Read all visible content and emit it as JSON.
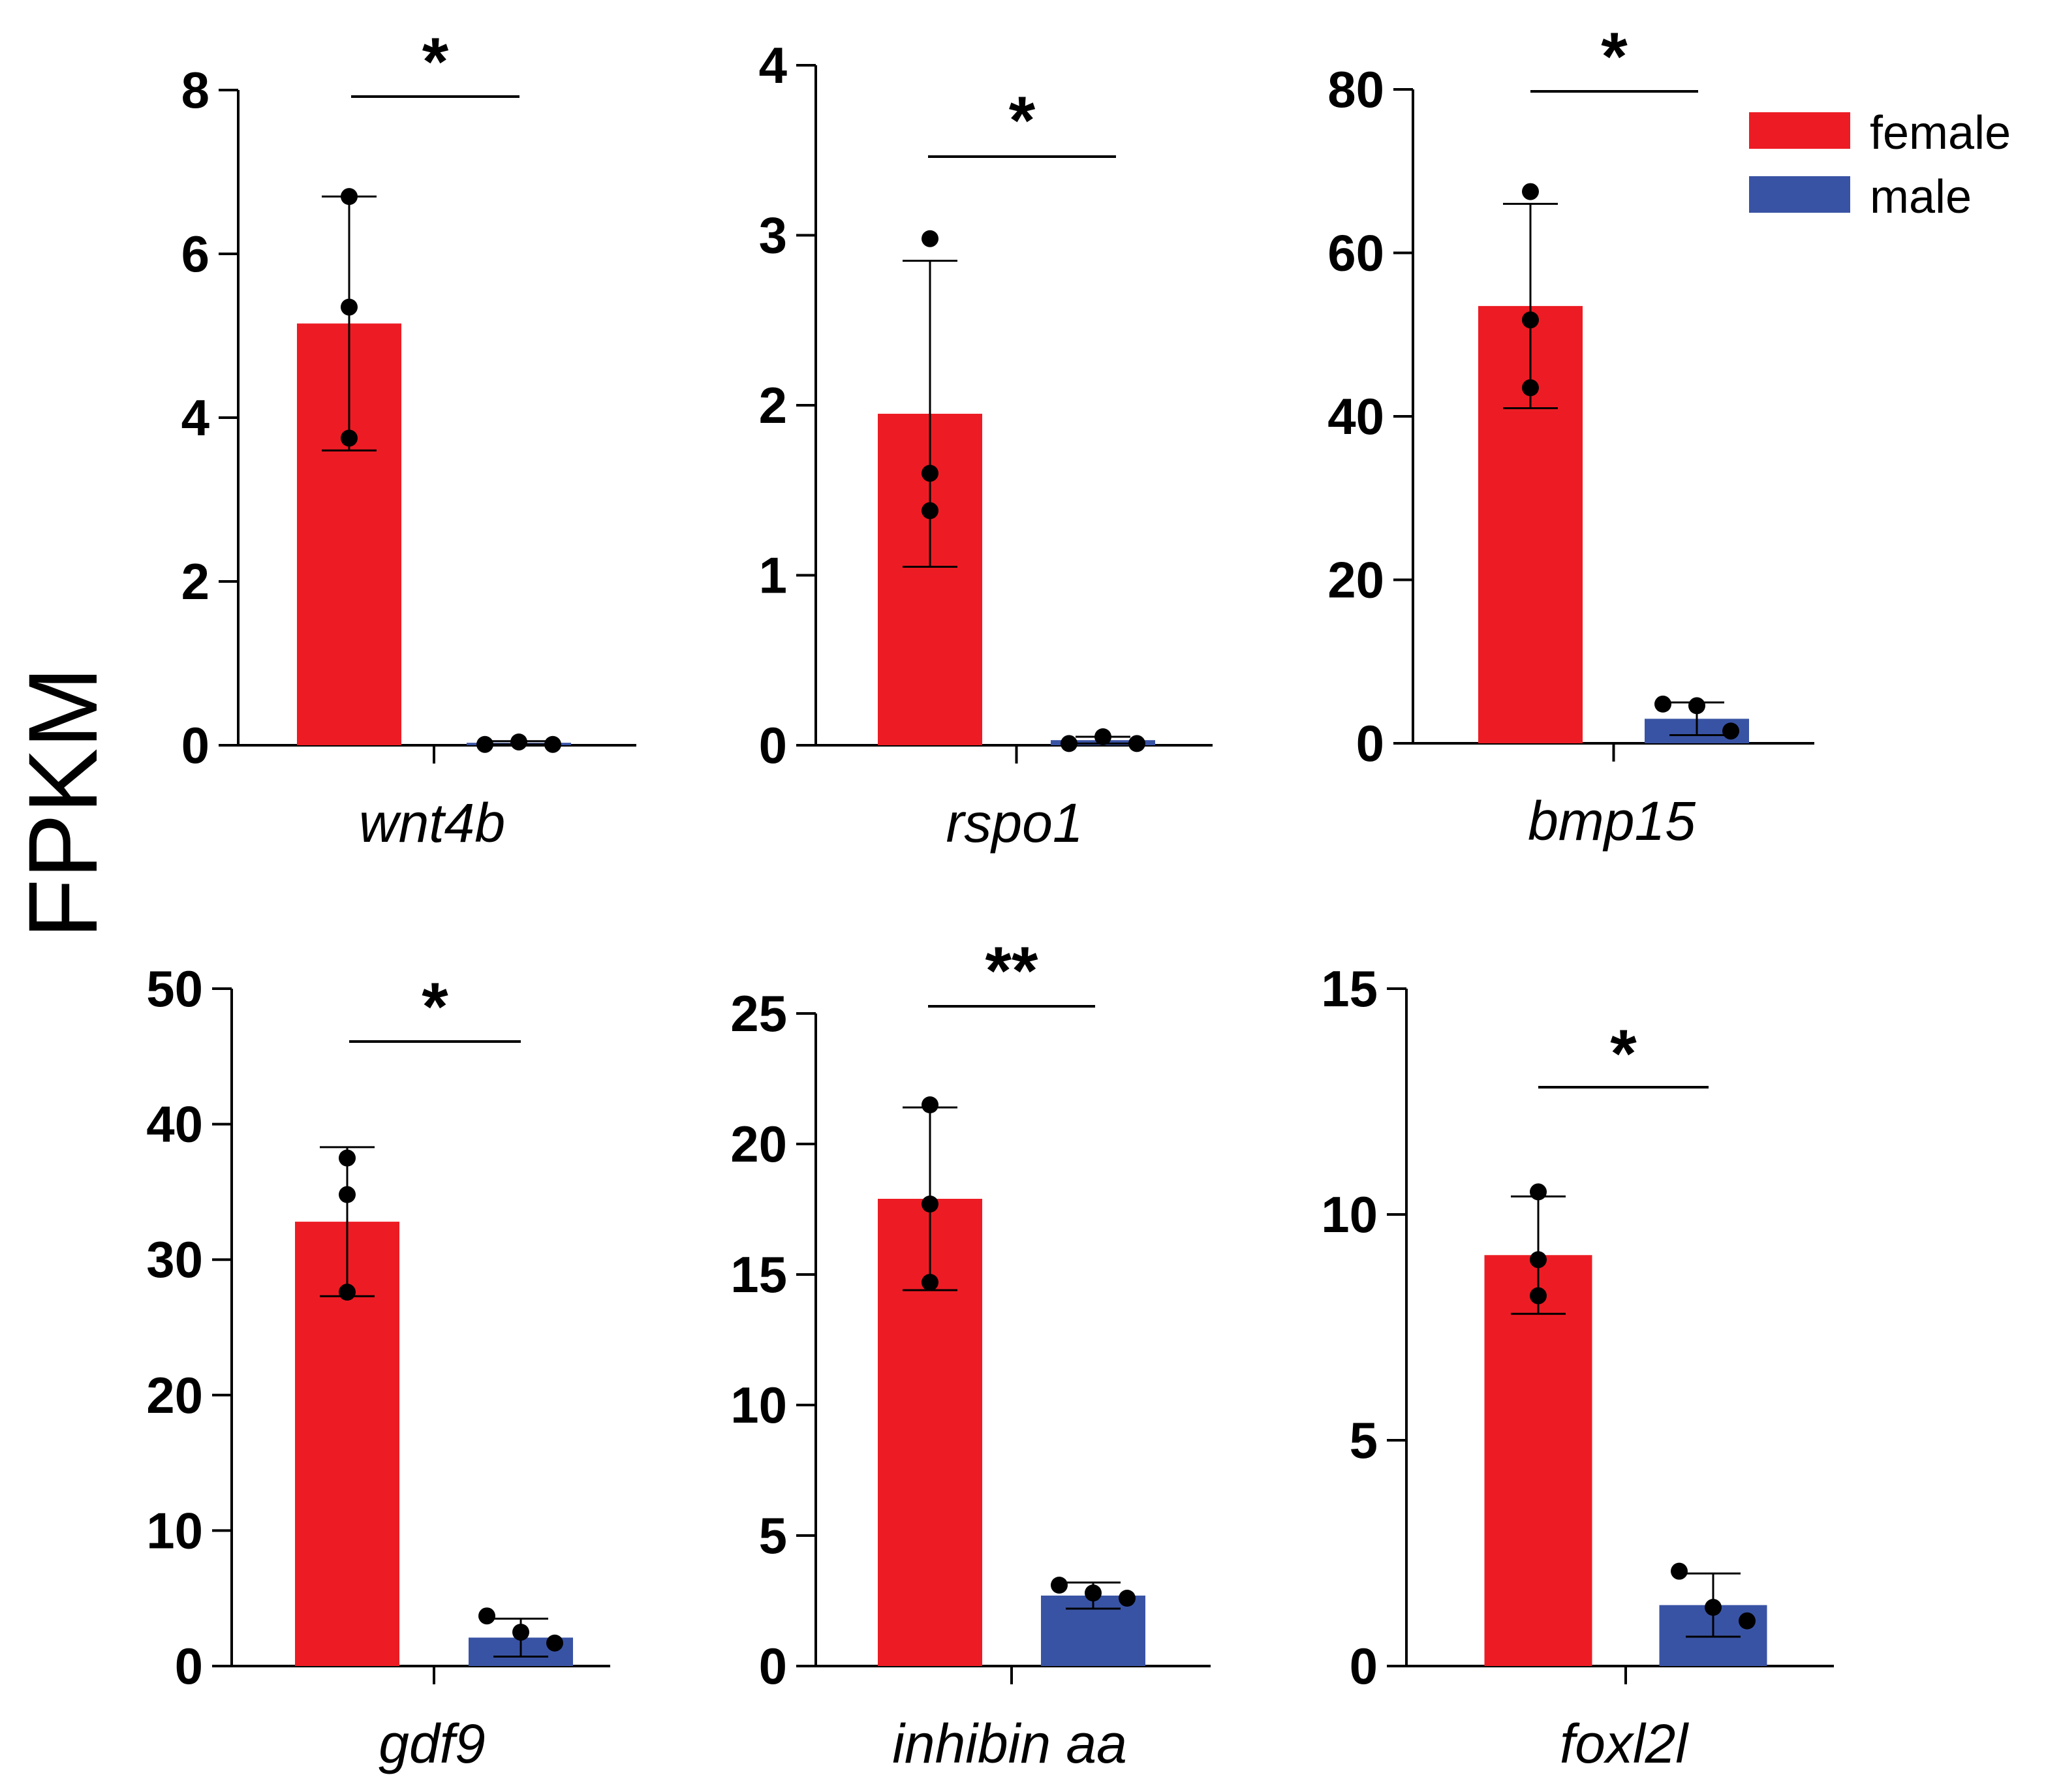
{
  "chart_data": {
    "type": "bar",
    "figure": {
      "ylabel": "FPKM",
      "legend": {
        "position": "top-right",
        "entries": [
          {
            "name": "female",
            "color": "#ed1c24"
          },
          {
            "name": "male",
            "color": "#3953a4"
          }
        ]
      }
    },
    "panels": [
      {
        "gene": "wnt4b",
        "significance": "*",
        "ylim": [
          0,
          8
        ],
        "ticks": [
          "0",
          "2",
          "4",
          "6",
          "8"
        ],
        "series": [
          {
            "name": "female",
            "color": "#ed1c24",
            "mean": 5.15,
            "error": 1.55,
            "points": [
              6.7,
              5.35,
              3.75
            ]
          },
          {
            "name": "male",
            "color": "#3953a4",
            "mean": 0.03,
            "error": 0.02,
            "points": [
              0.01,
              0.04,
              0.01
            ]
          }
        ]
      },
      {
        "gene": "rspo1",
        "significance": "*",
        "ylim": [
          0,
          4
        ],
        "ticks": [
          "0",
          "1",
          "2",
          "3",
          "4"
        ],
        "series": [
          {
            "name": "female",
            "color": "#ed1c24",
            "mean": 1.95,
            "error": 0.9,
            "points": [
              2.98,
              1.6,
              1.38
            ]
          },
          {
            "name": "male",
            "color": "#3953a4",
            "mean": 0.03,
            "error": 0.02,
            "points": [
              0.01,
              0.05,
              0.01
            ]
          }
        ]
      },
      {
        "gene": "bmp15",
        "significance": "*",
        "ylim": [
          0,
          80
        ],
        "ticks": [
          "0",
          "20",
          "40",
          "60",
          "80"
        ],
        "series": [
          {
            "name": "female",
            "color": "#ed1c24",
            "mean": 53.5,
            "error": 12.5,
            "points": [
              67.5,
              51.8,
              43.5
            ]
          },
          {
            "name": "male",
            "color": "#3953a4",
            "mean": 3.0,
            "error": 2.0,
            "points": [
              4.8,
              4.6,
              1.5
            ]
          }
        ]
      },
      {
        "gene": "gdf9",
        "significance": "*",
        "ylim": [
          0,
          50
        ],
        "ticks": [
          "0",
          "10",
          "20",
          "30",
          "40",
          "50"
        ],
        "series": [
          {
            "name": "female",
            "color": "#ed1c24",
            "mean": 32.8,
            "error": 5.5,
            "points": [
              37.5,
              34.8,
              27.6
            ]
          },
          {
            "name": "male",
            "color": "#3953a4",
            "mean": 2.1,
            "error": 1.4,
            "points": [
              3.7,
              2.5,
              1.7
            ]
          }
        ]
      },
      {
        "gene": "inhibin aa",
        "significance": "**",
        "ylim": [
          0,
          25
        ],
        "ticks": [
          "0",
          "5",
          "10",
          "15",
          "20",
          "25"
        ],
        "series": [
          {
            "name": "female",
            "color": "#ed1c24",
            "mean": 17.9,
            "error": 3.5,
            "points": [
              21.5,
              17.7,
              14.7
            ]
          },
          {
            "name": "male",
            "color": "#3953a4",
            "mean": 2.7,
            "error": 0.5,
            "points": [
              3.1,
              2.8,
              2.6
            ]
          }
        ]
      },
      {
        "gene": "foxl2l",
        "significance": "*",
        "ylim": [
          0,
          15
        ],
        "ticks": [
          "0",
          "5",
          "10",
          "15"
        ],
        "series": [
          {
            "name": "female",
            "color": "#ed1c24",
            "mean": 9.1,
            "error": 1.3,
            "points": [
              10.5,
              9.0,
              8.2
            ]
          },
          {
            "name": "male",
            "color": "#3953a4",
            "mean": 1.35,
            "error": 0.7,
            "points": [
              2.1,
              1.3,
              1.0
            ]
          }
        ]
      }
    ]
  }
}
